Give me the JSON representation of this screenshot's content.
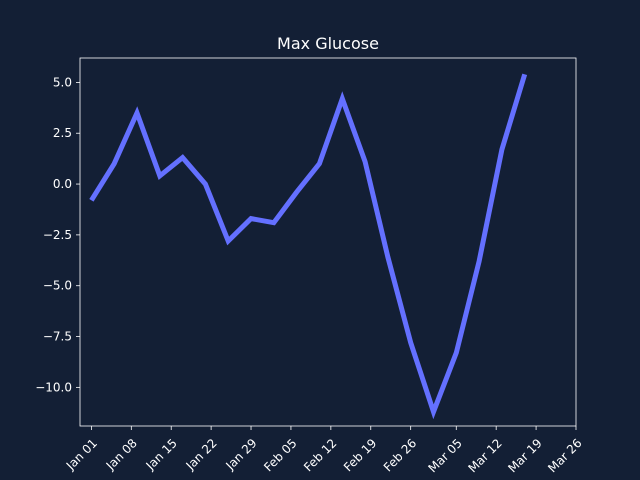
{
  "chart_data": {
    "type": "line",
    "title": "Max Glucose",
    "xlabel": "",
    "ylabel": "",
    "x": [
      "2024-01-01",
      "2024-01-05",
      "2024-01-09",
      "2024-01-13",
      "2024-01-17",
      "2024-01-21",
      "2024-01-25",
      "2024-01-29",
      "2024-02-02",
      "2024-02-06",
      "2024-02-10",
      "2024-02-14",
      "2024-02-18",
      "2024-02-22",
      "2024-02-26",
      "2024-03-01",
      "2024-03-05",
      "2024-03-09",
      "2024-03-13",
      "2024-03-17",
      "2024-03-21"
    ],
    "series": [
      {
        "values": [
          -0.8,
          1.0,
          3.5,
          0.4,
          1.3,
          0.0,
          -2.8,
          -1.7,
          -1.9,
          -0.4,
          1.0,
          4.2,
          1.1,
          -3.6,
          -7.8,
          -11.2,
          -8.3,
          -3.8,
          1.7,
          5.4,
          null
        ],
        "color": "#6470ff"
      }
    ],
    "xlim": [
      "2023-12-30",
      "2024-03-26"
    ],
    "ylim": [
      -11.9,
      6.2
    ],
    "xticks": [
      {
        "date": "2024-01-01",
        "label": "Jan 01"
      },
      {
        "date": "2024-01-08",
        "label": "Jan 08"
      },
      {
        "date": "2024-01-15",
        "label": "Jan 15"
      },
      {
        "date": "2024-01-22",
        "label": "Jan 22"
      },
      {
        "date": "2024-01-29",
        "label": "Jan 29"
      },
      {
        "date": "2024-02-05",
        "label": "Feb 05"
      },
      {
        "date": "2024-02-12",
        "label": "Feb 12"
      },
      {
        "date": "2024-02-19",
        "label": "Feb 19"
      },
      {
        "date": "2024-02-26",
        "label": "Feb 26"
      },
      {
        "date": "2024-03-05",
        "label": "Mar 05"
      },
      {
        "date": "2024-03-12",
        "label": "Mar 12"
      },
      {
        "date": "2024-03-19",
        "label": "Mar 19"
      },
      {
        "date": "2024-03-26",
        "label": "Mar 26"
      }
    ],
    "yticks": [
      {
        "value": 5.0,
        "label": "5.0"
      },
      {
        "value": 2.5,
        "label": "2.5"
      },
      {
        "value": 0.0,
        "label": "0.0"
      },
      {
        "value": -2.5,
        "label": "−2.5"
      },
      {
        "value": -5.0,
        "label": "−5.0"
      },
      {
        "value": -7.5,
        "label": "−7.5"
      },
      {
        "value": -10.0,
        "label": "−10.0"
      }
    ],
    "grid": false,
    "legend": "none",
    "background_color": "#131f35",
    "axis_color": "#ffffff"
  }
}
